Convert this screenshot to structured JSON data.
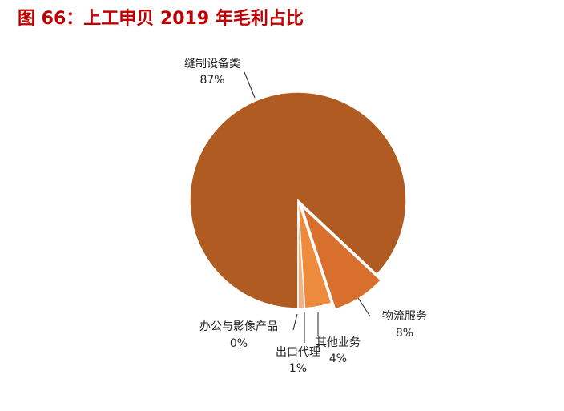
{
  "chart_data": {
    "type": "pie",
    "title": "图 66：上工申贝 2019 年毛利占比",
    "categories": [
      "缝制设备类",
      "物流服务",
      "其他业务",
      "出口代理",
      "办公与影像产品"
    ],
    "values": [
      87,
      8,
      4,
      1,
      0
    ],
    "value_labels": [
      "87%",
      "8%",
      "4%",
      "1%",
      "0%"
    ],
    "colors": [
      "#b05b22",
      "#d96f2c",
      "#ee8a3c",
      "#f4b183",
      "#f8cbad"
    ]
  }
}
